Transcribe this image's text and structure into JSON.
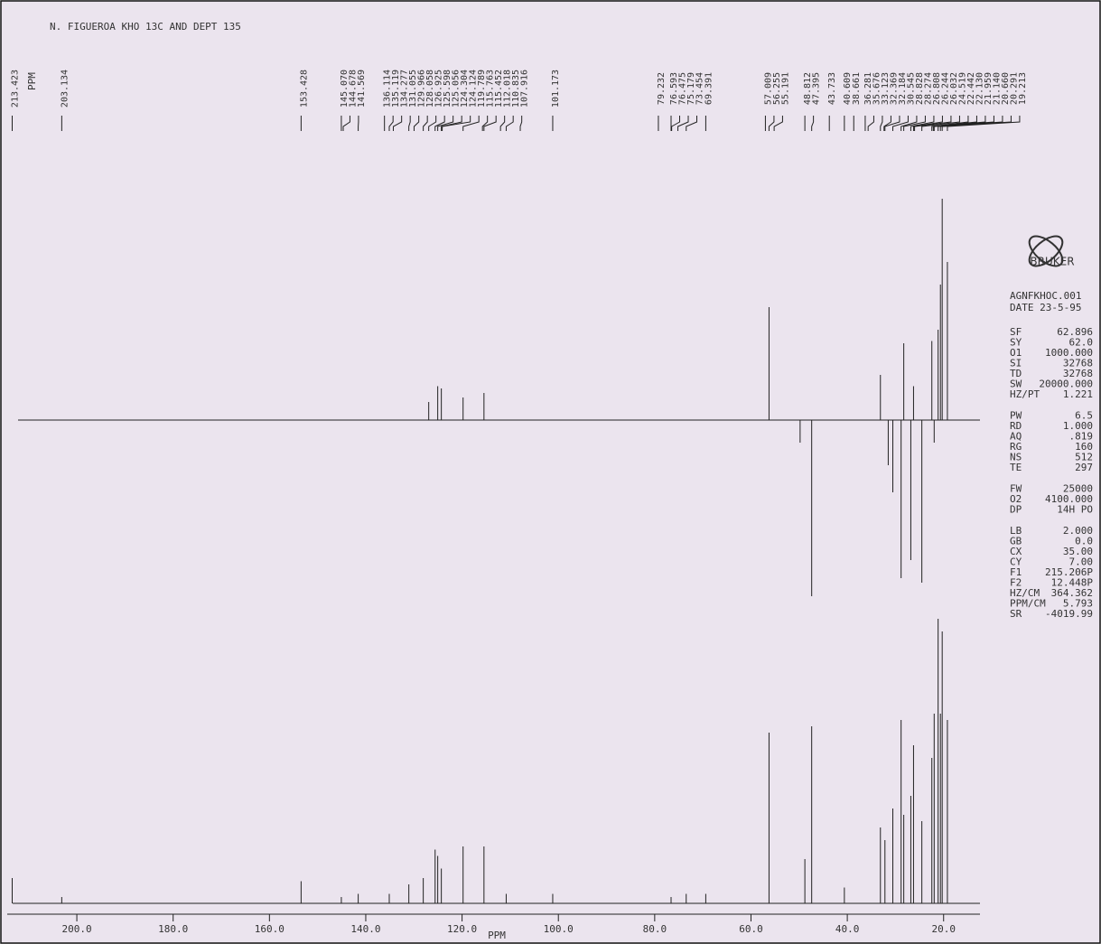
{
  "chart_data": {
    "type": "spectrum",
    "title": "N. FIGUEROA KHO 13C AND DEPT 135",
    "x_label": "PPM",
    "peak_list_label": "PPM",
    "xlim": [
      215.206,
      12.448
    ],
    "xticks": [
      {
        "value": 200,
        "label": "200.0"
      },
      {
        "value": 180,
        "label": "180.0"
      },
      {
        "value": 160,
        "label": "160.0"
      },
      {
        "value": 140,
        "label": "140.0"
      },
      {
        "value": 120,
        "label": "120.0"
      },
      {
        "value": 100,
        "label": "100.0"
      },
      {
        "value": 80,
        "label": "80.0"
      },
      {
        "value": 60,
        "label": "60.0"
      },
      {
        "value": 40,
        "label": "40.0"
      },
      {
        "value": 20,
        "label": "20.0"
      }
    ],
    "peaks": {
      "x": [
        213.423,
        203.134,
        153.428,
        145.07,
        144.678,
        141.569,
        136.114,
        135.119,
        134.277,
        131.055,
        129.966,
        128.058,
        126.925,
        125.598,
        125.056,
        124.304,
        124.124,
        119.789,
        115.763,
        115.452,
        112.018,
        110.835,
        107.916,
        101.173,
        79.232,
        76.593,
        76.475,
        75.179,
        73.454,
        69.391,
        57.009,
        56.255,
        55.191,
        48.812,
        47.395,
        43.733,
        40.609,
        38.661,
        36.281,
        35.676,
        33.123,
        32.369,
        32.184,
        30.545,
        28.828,
        28.274,
        26.808,
        26.244,
        26.032,
        24.519,
        22.442,
        22.13,
        21.959,
        21.14,
        20.66,
        20.291,
        19.213
      ],
      "value_labels": [
        "213.423",
        "203.134",
        "153.428",
        "145.070",
        "144.678",
        "141.569",
        "136.114",
        "135.119",
        "134.277",
        "131.055",
        "129.966",
        "128.058",
        "126.925",
        "125.598",
        "125.056",
        "124.304",
        "124.124",
        "119.789",
        "115.763",
        "115.452",
        "112.018",
        "110.835",
        "107.916",
        "101.173",
        "79.232",
        "76.593",
        "76.475",
        "75.179",
        "73.454",
        "69.391",
        "57.009",
        "56.255",
        "55.191",
        "48.812",
        "47.395",
        "43.733",
        "40.609",
        "38.661",
        "36.281",
        "35.676",
        "33.123",
        "32.369",
        "32.184",
        "30.545",
        "28.828",
        "28.274",
        "26.808",
        "26.244",
        "26.032",
        "24.519",
        "22.442",
        "22.130",
        "21.959",
        "21.140",
        "20.660",
        "20.291",
        "19.213"
      ]
    },
    "c13": {
      "x": [
        213.423,
        203.134,
        153.428,
        145.07,
        141.569,
        135.119,
        131.055,
        128.058,
        125.598,
        125.056,
        124.304,
        119.789,
        115.452,
        110.835,
        101.173,
        76.593,
        73.454,
        69.391,
        56.255,
        48.812,
        47.395,
        40.609,
        33.123,
        32.184,
        30.545,
        28.828,
        28.274,
        26.808,
        26.244,
        24.519,
        22.442,
        21.959,
        21.14,
        20.66,
        20.291,
        19.213
      ],
      "values": [
        8,
        2,
        7,
        2,
        3,
        3,
        6,
        8,
        17,
        15,
        11,
        18,
        18,
        3,
        3,
        2,
        3,
        3,
        54,
        14,
        56,
        5,
        24,
        20,
        30,
        58,
        28,
        34,
        50,
        26,
        46,
        60,
        90,
        60,
        86,
        58
      ]
    },
    "dept": {
      "x": [
        126.925,
        125.056,
        124.304,
        119.789,
        115.452,
        56.255,
        49.8,
        47.395,
        33.123,
        31.5,
        30.545,
        28.828,
        28.274,
        26.808,
        26.244,
        24.519,
        22.442,
        21.959,
        21.14,
        20.66,
        20.291,
        19.213
      ],
      "values": [
        8,
        15,
        14,
        10,
        12,
        50,
        -10,
        -78,
        20,
        -20,
        -32,
        -70,
        34,
        -62,
        15,
        -72,
        35,
        -10,
        40,
        60,
        98,
        70
      ]
    },
    "brand": "BRUKER",
    "file": "AGNFKHOC.001",
    "date": "DATE 23-5-95",
    "parameters": [
      [
        [
          "SF",
          "62.896"
        ],
        [
          "SY",
          "62.0"
        ],
        [
          "O1",
          "1000.000"
        ],
        [
          "SI",
          "32768"
        ],
        [
          "TD",
          "32768"
        ],
        [
          "SW",
          "20000.000"
        ],
        [
          "HZ/PT",
          "1.221"
        ]
      ],
      [
        [
          "PW",
          "6.5"
        ],
        [
          "RD",
          "1.000"
        ],
        [
          "AQ",
          ".819"
        ],
        [
          "RG",
          "160"
        ],
        [
          "NS",
          "512"
        ],
        [
          "TE",
          "297"
        ]
      ],
      [
        [
          "FW",
          "25000"
        ],
        [
          "O2",
          "4100.000"
        ],
        [
          "DP",
          "14H PO"
        ]
      ],
      [
        [
          "LB",
          "2.000"
        ],
        [
          "GB",
          "0.0"
        ],
        [
          "CX",
          "35.00"
        ],
        [
          "CY",
          "7.00"
        ],
        [
          "F1",
          "215.206P"
        ],
        [
          "F2",
          "12.448P"
        ],
        [
          "HZ/CM",
          "364.362"
        ],
        [
          "PPM/CM",
          "5.793"
        ],
        [
          "SR",
          "-4019.99"
        ]
      ]
    ]
  }
}
